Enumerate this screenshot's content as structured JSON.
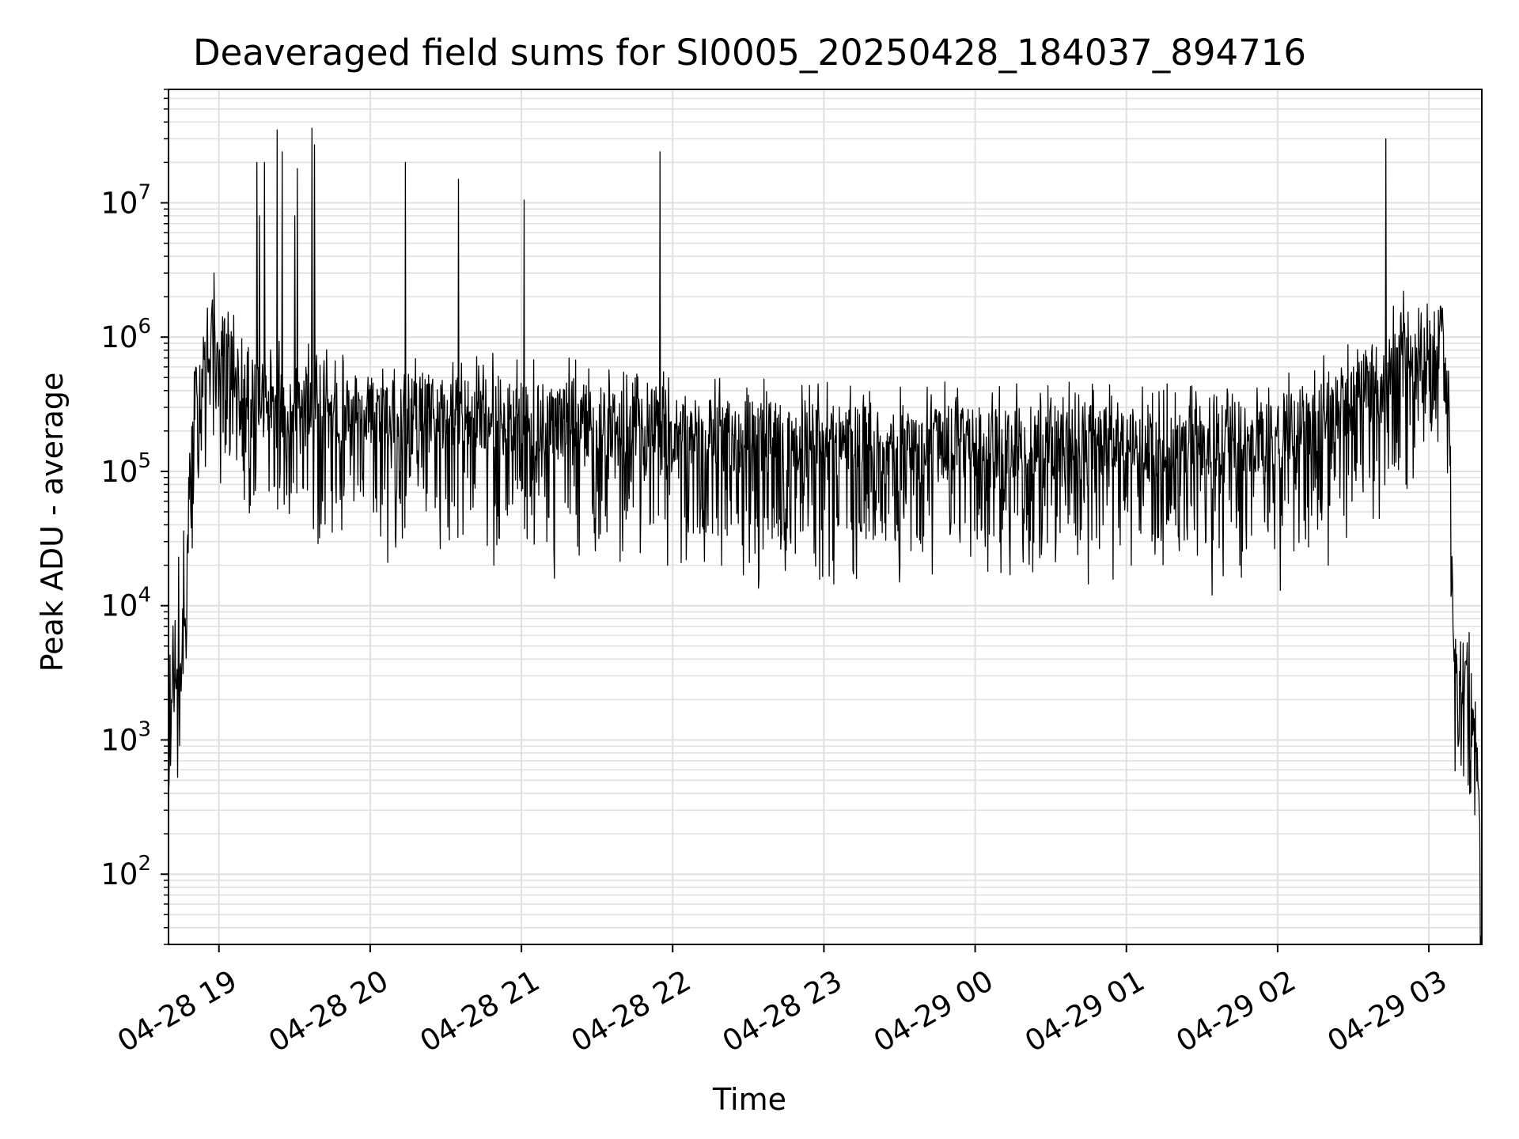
{
  "chart_data": {
    "type": "line",
    "title": "Deaveraged field sums for SI0005_20250428_184037_894716",
    "xlabel": "Time",
    "ylabel": "Peak ADU - average",
    "y_scale": "log",
    "ylim": [
      30,
      70000000
    ],
    "xlim": [
      "2025-04-28 18:40",
      "2025-04-29 03:21"
    ],
    "x_ticks": [
      {
        "at": "2025-04-28 19:00",
        "label": "04-28 19"
      },
      {
        "at": "2025-04-28 20:00",
        "label": "04-28 20"
      },
      {
        "at": "2025-04-28 21:00",
        "label": "04-28 21"
      },
      {
        "at": "2025-04-28 22:00",
        "label": "04-28 22"
      },
      {
        "at": "2025-04-28 23:00",
        "label": "04-28 23"
      },
      {
        "at": "2025-04-29 00:00",
        "label": "04-29 00"
      },
      {
        "at": "2025-04-29 01:00",
        "label": "04-29 01"
      },
      {
        "at": "2025-04-29 02:00",
        "label": "04-29 02"
      },
      {
        "at": "2025-04-29 03:00",
        "label": "04-29 03"
      }
    ],
    "y_ticks": [
      {
        "value": 100,
        "base": "10",
        "exp": "2"
      },
      {
        "value": 1000,
        "base": "10",
        "exp": "3"
      },
      {
        "value": 10000,
        "base": "10",
        "exp": "4"
      },
      {
        "value": 100000,
        "base": "10",
        "exp": "5"
      },
      {
        "value": 1000000,
        "base": "10",
        "exp": "6"
      },
      {
        "value": 10000000,
        "base": "10",
        "exp": "7"
      }
    ],
    "grid": true,
    "line_color": "#000000",
    "grid_color": "#e0e0e0",
    "series": [
      {
        "name": "",
        "points": [
          [
            "2025-04-28 18:40",
            2500
          ],
          [
            "2025-04-28 18:42",
            3000
          ],
          [
            "2025-04-28 18:44",
            3500
          ],
          [
            "2025-04-28 18:46",
            6000
          ],
          [
            "2025-04-28 18:48",
            50000
          ],
          [
            "2025-04-28 18:50",
            300000
          ],
          [
            "2025-04-28 18:53",
            700000
          ],
          [
            "2025-04-28 18:56",
            1100000
          ],
          [
            "2025-04-28 18:59",
            950000
          ],
          [
            "2025-04-28 19:05",
            650000
          ],
          [
            "2025-04-28 19:15",
            380000
          ],
          [
            "2025-04-28 19:30",
            320000
          ],
          [
            "2025-04-28 20:00",
            300000
          ],
          [
            "2025-04-28 20:30",
            280000
          ],
          [
            "2025-04-28 21:00",
            270000
          ],
          [
            "2025-04-28 21:30",
            240000
          ],
          [
            "2025-04-28 22:00",
            200000
          ],
          [
            "2025-04-28 22:30",
            180000
          ],
          [
            "2025-04-28 23:00",
            170000
          ],
          [
            "2025-04-28 23:30",
            165000
          ],
          [
            "2025-04-29 00:00",
            165000
          ],
          [
            "2025-04-29 00:30",
            165000
          ],
          [
            "2025-04-29 01:00",
            165000
          ],
          [
            "2025-04-29 01:30",
            170000
          ],
          [
            "2025-04-29 02:00",
            190000
          ],
          [
            "2025-04-29 02:15",
            240000
          ],
          [
            "2025-04-29 02:30",
            350000
          ],
          [
            "2025-04-29 02:45",
            550000
          ],
          [
            "2025-04-29 02:55",
            800000
          ],
          [
            "2025-04-29 03:01",
            1000000
          ],
          [
            "2025-04-29 03:05",
            900000
          ],
          [
            "2025-04-29 03:08",
            300000
          ],
          [
            "2025-04-29 03:10",
            5000
          ],
          [
            "2025-04-29 03:13",
            3000
          ],
          [
            "2025-04-29 03:16",
            2500
          ],
          [
            "2025-04-29 03:18",
            1500
          ],
          [
            "2025-04-29 03:20",
            300
          ],
          [
            "2025-04-29 03:21",
            30
          ]
        ],
        "spikes": [
          [
            "2025-04-28 19:15",
            20000000
          ],
          [
            "2025-04-28 19:16",
            8000000
          ],
          [
            "2025-04-28 19:18",
            20000000
          ],
          [
            "2025-04-28 19:23",
            35000000
          ],
          [
            "2025-04-28 19:25",
            24000000
          ],
          [
            "2025-04-28 19:30",
            8000000
          ],
          [
            "2025-04-28 19:31",
            18000000
          ],
          [
            "2025-04-28 19:37",
            36000000
          ],
          [
            "2025-04-28 19:38",
            27000000
          ],
          [
            "2025-04-28 20:14",
            20000000
          ],
          [
            "2025-04-28 20:35",
            15000000
          ],
          [
            "2025-04-28 21:01",
            10500000
          ],
          [
            "2025-04-28 21:55",
            24000000
          ],
          [
            "2025-04-29 02:43",
            30000000
          ],
          [
            "2025-04-29 02:46",
            1700000
          ],
          [
            "2025-04-29 02:50",
            2200000
          ],
          [
            "2025-04-28 18:58",
            3000000
          ]
        ],
        "dips": [
          [
            "2025-04-28 18:41",
            1100
          ],
          [
            "2025-04-28 18:44",
            23000
          ],
          [
            "2025-04-28 18:46",
            36000
          ],
          [
            "2025-04-28 19:40",
            32000
          ],
          [
            "2025-04-28 20:07",
            21000
          ],
          [
            "2025-04-28 20:49",
            20000
          ],
          [
            "2025-04-28 21:10",
            30000
          ],
          [
            "2025-04-28 21:13",
            16000
          ],
          [
            "2025-04-28 21:58",
            20000
          ],
          [
            "2025-04-28 22:34",
            13500
          ],
          [
            "2025-04-28 23:04",
            14500
          ],
          [
            "2025-04-28 23:30",
            15000
          ],
          [
            "2025-04-29 00:05",
            18000
          ],
          [
            "2025-04-29 00:45",
            14500
          ],
          [
            "2025-04-29 01:02",
            20000
          ],
          [
            "2025-04-29 01:34",
            12000
          ],
          [
            "2025-04-29 01:45",
            20000
          ],
          [
            "2025-04-29 02:01",
            13000
          ],
          [
            "2025-04-29 02:20",
            20000
          ]
        ]
      }
    ]
  }
}
